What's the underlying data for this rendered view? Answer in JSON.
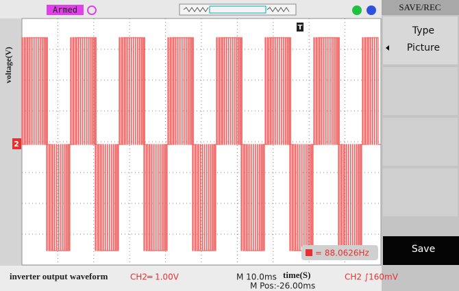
{
  "status": {
    "state": "Armed"
  },
  "menu": {
    "title": "SAVE/REC",
    "type_label": "Type",
    "type_value": "Picture",
    "action": "Save"
  },
  "screen": {
    "y_axis_label": "voltage(V)",
    "trigger_marker": "T",
    "channel_marker": "2",
    "frequency": "= 88.0626Hz"
  },
  "footer": {
    "caption": "inverter output waveform",
    "ch2_scale": "CH2═ 1.00V",
    "timebase": "M 10.0ms",
    "x_axis_label": "time(S)",
    "position": "M Pos:-26.00ms",
    "trigger": "CH2 ∫160mV"
  }
}
